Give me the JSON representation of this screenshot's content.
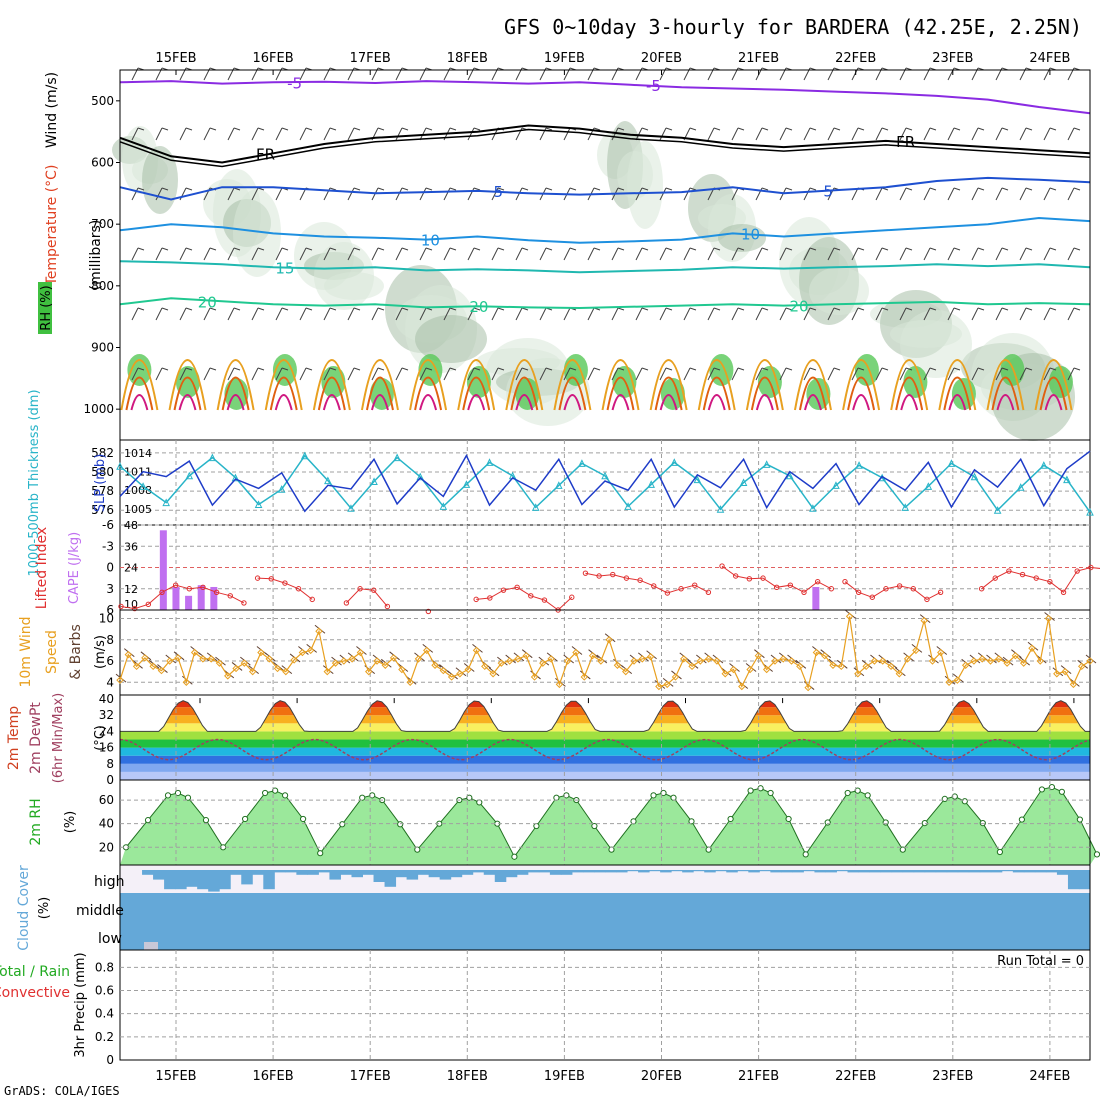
{
  "title": "GFS 0~10day 3-hourly for BARDERA (42.25E, 2.25N)",
  "credit": "GrADS: COLA/IGES",
  "colors": {
    "frame": "#000000",
    "grid": "#a0a0a0",
    "thickness": "#28b4c8",
    "slp": "#1e3cc8",
    "lifted": "#e03030",
    "cape": "#c070f0",
    "wind10m": "#e8a020",
    "barb": "#604030",
    "rh2m": "#22cc22",
    "cloud": "#64a8d8",
    "cloudBg": "#f4f0f8",
    "dewpt": "#a04060"
  },
  "chart_data": [
    {
      "type": "line",
      "panel": "upper-air",
      "ylabel_wind": "Wind (m/s)",
      "ylabel_temp": "Temperature (°C)",
      "ylabel_rh": "RH (%)",
      "ylabel_p": "(millibars)",
      "y_ticks": [
        "500",
        "600",
        "700",
        "800",
        "900",
        "1000"
      ],
      "y_values": [
        500,
        600,
        700,
        800,
        900,
        1000
      ],
      "ylim": [
        1050,
        450
      ],
      "x_labels": [
        "15FEB",
        "16FEB",
        "17FEB",
        "18FEB",
        "19FEB",
        "20FEB",
        "21FEB",
        "22FEB",
        "23FEB",
        "24FEB"
      ],
      "isotherm_labels": [
        {
          "text": "-5",
          "series": "-5"
        },
        {
          "text": "-5",
          "series": "-5"
        },
        {
          "text": "FR",
          "series": "FR"
        },
        {
          "text": "FR",
          "series": "FR"
        },
        {
          "text": "5",
          "series": "5"
        },
        {
          "text": "5",
          "series": "5"
        },
        {
          "text": "10",
          "series": "10"
        },
        {
          "text": "10",
          "series": "10"
        },
        {
          "text": "15",
          "series": "15"
        },
        {
          "text": "20",
          "series": "20"
        },
        {
          "text": "20",
          "series": "20"
        },
        {
          "text": "20",
          "series": "20"
        }
      ],
      "isotherms": [
        {
          "name": "-5",
          "color": "#8a2be2",
          "p": [
            470,
            468,
            472,
            470,
            469,
            471,
            468,
            470,
            472,
            470,
            474,
            478,
            480,
            482,
            485,
            488,
            492,
            498,
            510,
            520
          ]
        },
        {
          "name": "FR",
          "color": "#000000",
          "p": [
            560,
            590,
            600,
            585,
            570,
            560,
            555,
            550,
            540,
            545,
            555,
            560,
            570,
            575,
            570,
            565,
            570,
            575,
            580,
            585
          ]
        },
        {
          "name": "5",
          "color": "#1e50d0",
          "p": [
            640,
            660,
            640,
            640,
            645,
            650,
            648,
            646,
            650,
            652,
            650,
            648,
            640,
            650,
            645,
            640,
            630,
            625,
            628,
            632
          ]
        },
        {
          "name": "10",
          "color": "#1e90e0",
          "p": [
            710,
            700,
            705,
            715,
            720,
            722,
            725,
            720,
            726,
            730,
            728,
            725,
            715,
            720,
            715,
            710,
            705,
            700,
            690,
            695
          ]
        },
        {
          "name": "15",
          "color": "#20b8b0",
          "p": [
            760,
            762,
            765,
            770,
            772,
            770,
            775,
            773,
            775,
            778,
            776,
            774,
            770,
            772,
            770,
            768,
            765,
            768,
            765,
            770
          ]
        },
        {
          "name": "20",
          "color": "#20c890",
          "p": [
            830,
            820,
            825,
            830,
            832,
            830,
            835,
            833,
            835,
            836,
            834,
            832,
            830,
            832,
            830,
            828,
            826,
            830,
            828,
            830
          ]
        }
      ]
    },
    {
      "type": "line",
      "panel": "thickness-slp",
      "ylabel_left": "1000-500mb Thickness (dm)",
      "ylabel_right": "SLP (mb)",
      "left_ticks": [
        "576",
        "578",
        "580",
        "582"
      ],
      "right_ticks": [
        "1005",
        "1008",
        "1011",
        "1014"
      ],
      "series": [
        {
          "name": "Thickness",
          "axis": "left",
          "values": [
            580.6,
            578.5,
            576.8,
            579.6,
            581.5,
            579.4,
            576.6,
            578.2,
            581.7,
            579.1,
            576.2,
            579.0,
            581.5,
            579.5,
            576.4,
            578.7,
            581.0,
            579.6,
            576.3,
            578.6,
            580.9,
            579.6,
            576.4,
            578.7,
            581.0,
            579.2,
            576.1,
            578.9,
            580.8,
            579.6,
            576.2,
            578.6,
            580.7,
            579.4,
            576.3,
            578.5,
            580.9,
            579.5,
            576.0,
            578.4,
            580.7,
            579.2,
            575.8
          ]
        },
        {
          "name": "SLP",
          "axis": "right",
          "values": [
            1007.0,
            1011.0,
            1010.2,
            1012.7,
            1005.6,
            1009.8,
            1008.3,
            1010.8,
            1004.6,
            1008.8,
            1008.2,
            1013.0,
            1005.8,
            1010.0,
            1007.0,
            1013.6,
            1005.6,
            1010.0,
            1008.0,
            1013.0,
            1005.7,
            1009.5,
            1008.0,
            1013.0,
            1005.3,
            1010.5,
            1008.4,
            1013.0,
            1005.2,
            1011.0,
            1008.3,
            1012.3,
            1005.7,
            1010.2,
            1008.0,
            1012.5,
            1005.3,
            1011.3,
            1008.5,
            1013.0,
            1005.5,
            1011.5,
            1014.3
          ]
        }
      ]
    },
    {
      "type": "bar",
      "panel": "cape-lifted",
      "ylabel_left": "Lifted Index",
      "ylabel_right": "CAPE (J/kg)",
      "left_ticks": [
        "6",
        "3",
        "0",
        "-3",
        "-6"
      ],
      "right_ticks": [
        "10",
        "12",
        "24",
        "36",
        "48"
      ],
      "cape_bars": [
        {
          "x": 0.4,
          "value": 45
        },
        {
          "x": 0.53,
          "value": 13
        },
        {
          "x": 0.66,
          "value": 8
        },
        {
          "x": 0.79,
          "value": 14
        },
        {
          "x": 0.92,
          "value": 13
        },
        {
          "x": 7.12,
          "value": 13
        }
      ],
      "lifted_index": [
        {
          "x": [
            0.0,
            0.2,
            0.4,
            0.6,
            0.8,
            1.0,
            1.2,
            1.4,
            1.6,
            1.8
          ],
          "values": [
            5.5,
            5.8,
            5.2,
            3.5,
            2.5,
            3.0,
            2.8,
            3.5,
            4.0,
            5.0
          ]
        },
        {
          "x": [
            2.0,
            2.2,
            2.4,
            2.6,
            2.8
          ],
          "values": [
            1.5,
            1.6,
            2.2,
            3.0,
            4.5
          ]
        },
        {
          "x": [
            3.3,
            3.5,
            3.7,
            3.9
          ],
          "values": [
            5.0,
            3.0,
            3.2,
            5.5
          ]
        },
        {
          "x": [
            4.5
          ],
          "values": [
            6.2
          ]
        },
        {
          "x": [
            5.2,
            5.4,
            5.6,
            5.8,
            6.0,
            6.2,
            6.4,
            6.6
          ],
          "values": [
            4.5,
            4.3,
            3.2,
            2.8,
            4.0,
            4.6,
            6.0,
            4.2
          ]
        },
        {
          "x": [
            6.8,
            7.0,
            7.2,
            7.4,
            7.6,
            7.8,
            8.0,
            8.2,
            8.4,
            8.6
          ],
          "values": [
            0.8,
            1.2,
            1.0,
            1.5,
            1.8,
            2.6,
            3.6,
            3.0,
            2.5,
            3.5
          ]
        },
        {
          "x": [
            8.8,
            9.0,
            9.2,
            9.4,
            9.6,
            9.8,
            10.0,
            10.2,
            10.4
          ],
          "values": [
            -0.2,
            1.2,
            1.6,
            1.5,
            2.8,
            2.5,
            3.5,
            2.0,
            3.0
          ]
        },
        {
          "x": [
            10.6,
            10.8,
            11.0,
            11.2,
            11.4,
            11.6,
            11.8,
            12.0
          ],
          "values": [
            2.0,
            3.5,
            4.2,
            3.0,
            2.6,
            3.0,
            4.5,
            3.5
          ]
        },
        {
          "x": [
            12.6,
            12.8,
            13.0,
            13.2,
            13.4,
            13.6,
            13.8,
            14.0,
            14.2,
            14.4
          ],
          "values": [
            3.0,
            1.5,
            0.5,
            1.0,
            1.5,
            2.0,
            3.5,
            0.5,
            0.0,
            0.2
          ]
        }
      ]
    },
    {
      "type": "line",
      "panel": "wind10m",
      "ylabel": "10m Wind Speed & Barbs (m/s)",
      "y_ticks": [
        "4",
        "6",
        "8",
        "10"
      ],
      "values": [
        4.2,
        6.6,
        5.5,
        6.3,
        5.5,
        5.1,
        6.0,
        6.3,
        4.0,
        6.8,
        6.2,
        6.2,
        5.8,
        4.6,
        5.3,
        5.8,
        5.0,
        6.8,
        6.2,
        5.3,
        5.0,
        6.1,
        6.8,
        7.0,
        8.8,
        5.0,
        5.8,
        6.0,
        6.2,
        6.8,
        5.0,
        6.0,
        5.6,
        6.3,
        5.2,
        4.0,
        6.2,
        7.0,
        5.6,
        5.1,
        4.5,
        4.8,
        5.2,
        7.0,
        5.5,
        4.8,
        5.8,
        6.0,
        6.2,
        6.5,
        4.5,
        5.8,
        6.2,
        3.8,
        6.0,
        6.8,
        4.5,
        6.5,
        6.0,
        8.0,
        5.6,
        5.0,
        6.0,
        6.2,
        6.4,
        3.6,
        3.8,
        4.5,
        6.2,
        5.5,
        6.0,
        6.2,
        6.0,
        4.8,
        5.2,
        3.6,
        5.2,
        6.5,
        5.2,
        6.0,
        6.2,
        6.0,
        5.5,
        3.5,
        6.8,
        6.5,
        5.6,
        5.5,
        10.2,
        4.8,
        5.5,
        6.0,
        6.0,
        5.5,
        4.8,
        6.2,
        7.0,
        9.8,
        6.0,
        6.8,
        4.0,
        4.2,
        5.6,
        6.0,
        6.2,
        6.0,
        6.2,
        5.8,
        6.5,
        5.8,
        7.2,
        6.0,
        10.0,
        4.8,
        5.0,
        3.8,
        5.5,
        6.0
      ]
    },
    {
      "type": "area",
      "panel": "temp",
      "ylabel": "2m Temp 2m DewPt (6hr Min/Max) (°C)",
      "y_ticks": [
        "0",
        "8",
        "16",
        "24",
        "32",
        "40"
      ],
      "days": 10,
      "temp_min": 24,
      "temp_max": 40,
      "dewpt_mean": 15,
      "dewpt_amp": 5
    },
    {
      "type": "area",
      "panel": "rh2m",
      "ylabel": "2m RH (%)",
      "y_ticks": [
        "20",
        "40",
        "60"
      ],
      "rh_min": [
        20,
        20,
        15,
        18,
        12,
        18,
        18,
        14,
        18,
        16,
        14
      ],
      "rh_max": [
        66,
        68,
        64,
        62,
        64,
        66,
        70,
        68,
        63,
        71
      ]
    },
    {
      "type": "bar",
      "panel": "cloud",
      "ylabel": "Cloud Cover (%)",
      "levels": [
        "high",
        "middle",
        "low"
      ],
      "high_levels": [
        0,
        0,
        0.2,
        0.4,
        0.8,
        0.8,
        0.7,
        0.8,
        0.9,
        0.8,
        0.2,
        0.6,
        0.2,
        0.8,
        0.1,
        0.1,
        0.2,
        0.2,
        0.1,
        0.4,
        0.2,
        0.3,
        0.2,
        0.5,
        0.7,
        0.3,
        0.4,
        0.2,
        0.3,
        0.4,
        0.3,
        0.2,
        0.1,
        0.2,
        0.5,
        0.3,
        0.2,
        0.1,
        0.1,
        0.2,
        0.2,
        0.1,
        0.1,
        0.1,
        0.1,
        0.1,
        0.05,
        0.1,
        0.05,
        0.1,
        0.05,
        0.1,
        0.05,
        0.1,
        0.05,
        0.1,
        0.05,
        0.1,
        0.05,
        0.1,
        0.1,
        0.1,
        0.05,
        0.1,
        0.1,
        0.05,
        0.1,
        0.1,
        0.1,
        0.1,
        0.1,
        0.1,
        0.1,
        0.1,
        0.1,
        0.1,
        0.1,
        0.1,
        0.1,
        0.1,
        0.05,
        0.1,
        0.1,
        0.1,
        0.1,
        0.2,
        0.8,
        0.8
      ],
      "low_patch": 0.3
    },
    {
      "type": "bar",
      "panel": "precip",
      "ylabel_main": "3hr Precip (mm)",
      "ylabel_total": "Total / Rain",
      "ylabel_conv": "Convective",
      "y_ticks": [
        "0",
        "0.2",
        "0.4",
        "0.6",
        "0.8"
      ],
      "run_total_text": "Run Total = 0",
      "values": []
    }
  ]
}
